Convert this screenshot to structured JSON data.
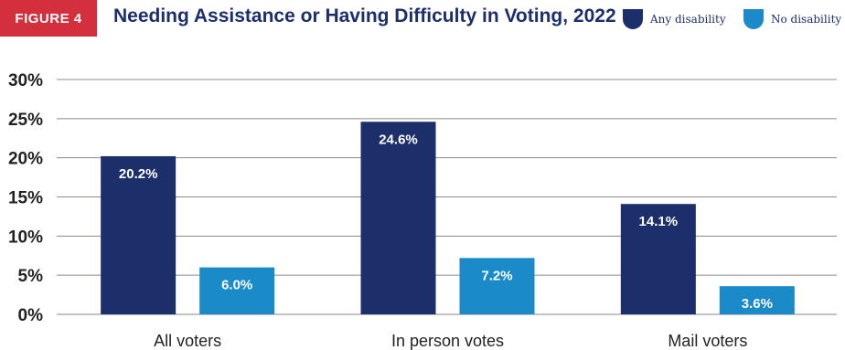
{
  "figure_label": "FIGURE 4",
  "colors": {
    "badge": "#d32f3c",
    "title": "#1d2f6b",
    "any": "#1d2f6b",
    "no": "#1a8bc8",
    "grid": "#8a8a8a",
    "axis_text": "#222222"
  },
  "chart_data": {
    "type": "bar",
    "title": "Needing Assistance or Having Difficulty in Voting, 2022",
    "categories": [
      "All voters",
      "In person votes",
      "Mail voters"
    ],
    "series": [
      {
        "name": "Any disability",
        "values": [
          20.2,
          24.6,
          14.1
        ],
        "labels": [
          "20.2%",
          "24.6%",
          "14.1%"
        ]
      },
      {
        "name": "No disability",
        "values": [
          6.0,
          7.2,
          3.6
        ],
        "labels": [
          "6.0%",
          "7.2%",
          "3.6%"
        ]
      }
    ],
    "yticks": [
      "0%",
      "5%",
      "10%",
      "15%",
      "20%",
      "25%",
      "30%"
    ],
    "ylim": [
      0,
      30
    ],
    "grid": true,
    "legend_position": "top-right"
  }
}
